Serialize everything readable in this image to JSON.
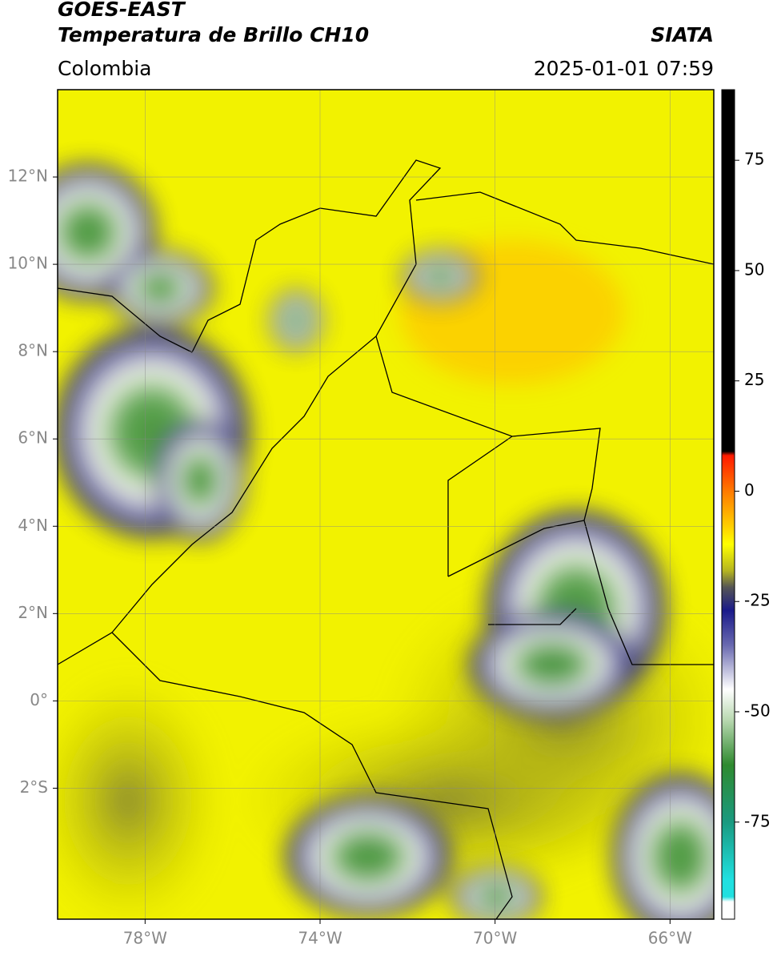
{
  "header": {
    "title": "GOES-EAST",
    "subtitle": "Temperatura de Brillo CH10",
    "region": "Colombia",
    "source": "SIATA",
    "timestamp": "2025-01-01 07:59"
  },
  "map": {
    "xlim": [
      -80,
      -65
    ],
    "ylim": [
      -5,
      14
    ],
    "xticks": [
      {
        "value": -78,
        "label": "78°W"
      },
      {
        "value": -74,
        "label": "74°W"
      },
      {
        "value": -70,
        "label": "70°W"
      },
      {
        "value": -66,
        "label": "66°W"
      }
    ],
    "yticks": [
      {
        "value": 12,
        "label": "12°N"
      },
      {
        "value": 10,
        "label": "10°N"
      },
      {
        "value": 8,
        "label": "8°N"
      },
      {
        "value": 6,
        "label": "6°N"
      },
      {
        "value": 4,
        "label": "4°N"
      },
      {
        "value": 2,
        "label": "2°N"
      },
      {
        "value": 0,
        "label": "0°"
      },
      {
        "value": -2,
        "label": "2°S"
      }
    ],
    "grid": true
  },
  "colorbar": {
    "lim": [
      -97,
      91
    ],
    "ticks": [
      75,
      50,
      25,
      0,
      -25,
      -50,
      -75
    ]
  }
}
